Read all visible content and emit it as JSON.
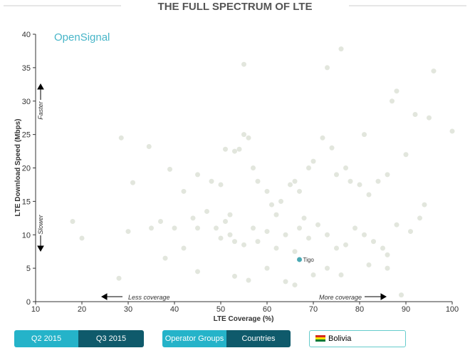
{
  "chart_data": {
    "type": "scatter",
    "title": "THE FULL SPECTRUM OF LTE",
    "brand": "OpenSignal",
    "x_label": "LTE Coverage (%)",
    "y_label": "LTE Download Speed (Mbps)",
    "xlim": [
      10,
      100
    ],
    "xticks": [
      10,
      20,
      30,
      40,
      50,
      60,
      70,
      80,
      90,
      100
    ],
    "ylim": [
      0,
      40
    ],
    "yticks": [
      0,
      5,
      10,
      15,
      20,
      25,
      30,
      35,
      40
    ],
    "annotations": [
      "Faster",
      "Slower",
      "Less coverage",
      "More coverage"
    ],
    "series": [
      {
        "color": "#e2e6dd",
        "x": [
          28.5,
          34.5,
          39,
          42,
          45,
          48,
          50,
          51,
          52,
          53,
          54,
          55,
          55,
          56,
          57,
          58,
          60,
          61,
          62,
          63,
          65,
          66,
          67,
          68,
          69,
          70,
          72,
          73,
          74,
          75,
          76,
          77,
          78,
          80,
          81,
          82,
          84,
          86,
          87,
          88,
          90,
          92,
          94,
          95,
          96,
          100,
          31,
          35,
          37,
          40,
          42,
          44,
          45,
          47,
          49,
          50,
          51,
          52,
          53,
          55,
          57,
          58,
          60,
          62,
          64,
          66,
          67,
          69,
          71,
          73,
          75,
          77,
          79,
          81,
          83,
          85,
          86,
          88,
          91,
          93,
          28,
          38,
          45,
          53,
          56,
          60,
          64,
          66,
          70,
          73,
          76,
          82,
          86,
          89,
          20,
          18,
          30
        ],
        "values": [
          24.5,
          23.2,
          19.8,
          16.5,
          19,
          18,
          17.5,
          22.8,
          13,
          22.5,
          22.8,
          25,
          35.5,
          24.5,
          20,
          18,
          16.5,
          14.5,
          13,
          15,
          17.5,
          18,
          16.5,
          12.5,
          20,
          21,
          24.5,
          35,
          23,
          19,
          37.8,
          20,
          18,
          17.5,
          25,
          16,
          18,
          19,
          30,
          31.5,
          22,
          28,
          14.5,
          27.5,
          34.5,
          25.5,
          17.8,
          11,
          12,
          11,
          8,
          12.5,
          11,
          13.5,
          11,
          9.5,
          12,
          10,
          9,
          8.5,
          11,
          9,
          10.5,
          8,
          10,
          7.5,
          11,
          9.5,
          11.5,
          10,
          8,
          8.5,
          11,
          10,
          9,
          8,
          7,
          11.5,
          10.5,
          12.5,
          3.5,
          6.5,
          4.5,
          3.8,
          3.2,
          5,
          3,
          2.5,
          4,
          5,
          4,
          5.5,
          5,
          1,
          9.5,
          12,
          10.5
        ]
      },
      {
        "name": "Tigo",
        "color": "#4aa9b4",
        "x": [
          67
        ],
        "values": [
          6.3
        ]
      }
    ]
  },
  "controls": {
    "periods": [
      "Q2 2015",
      "Q3 2015"
    ],
    "groupings": [
      "Operator Groups",
      "Countries"
    ],
    "country": "Bolivia"
  }
}
